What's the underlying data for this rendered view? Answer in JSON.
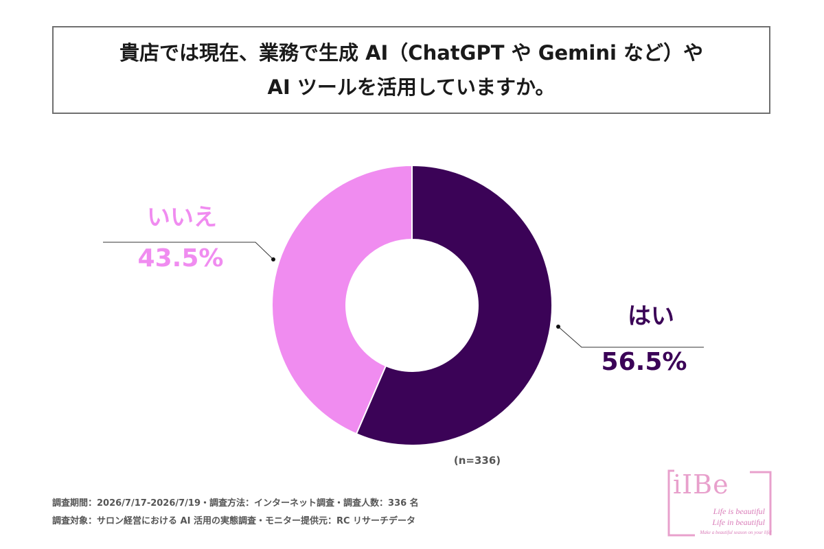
{
  "title": {
    "line1": "貴店では現在、業務で生成 AI（ChatGPT や Gemini など）や",
    "line2": "AI ツールを活用していますか。"
  },
  "chart_data": {
    "type": "pie",
    "donut": true,
    "slices": [
      {
        "label": "はい",
        "value": 56.5,
        "value_label": "56.5%",
        "color": "#3b0357"
      },
      {
        "label": "いいえ",
        "value": 43.5,
        "value_label": "43.5%",
        "color": "#f08cf0"
      }
    ],
    "sample_note": "(n=336)"
  },
  "footnotes": {
    "line1": "調査期間：2026/7/17-2026/7/19・調査方法：インターネット調査・調査人数：336 名",
    "line2": "調査対象：サロン経営における AI 活用の実態調査・モニター提供元：RC リサーチデータ"
  },
  "logo": {
    "name": "iIBe",
    "tagline1": "Life is beautiful",
    "tagline2": "Life in beautiful",
    "tagline3": "Make a beautiful season on your life!",
    "color": "#e8a0cc"
  }
}
